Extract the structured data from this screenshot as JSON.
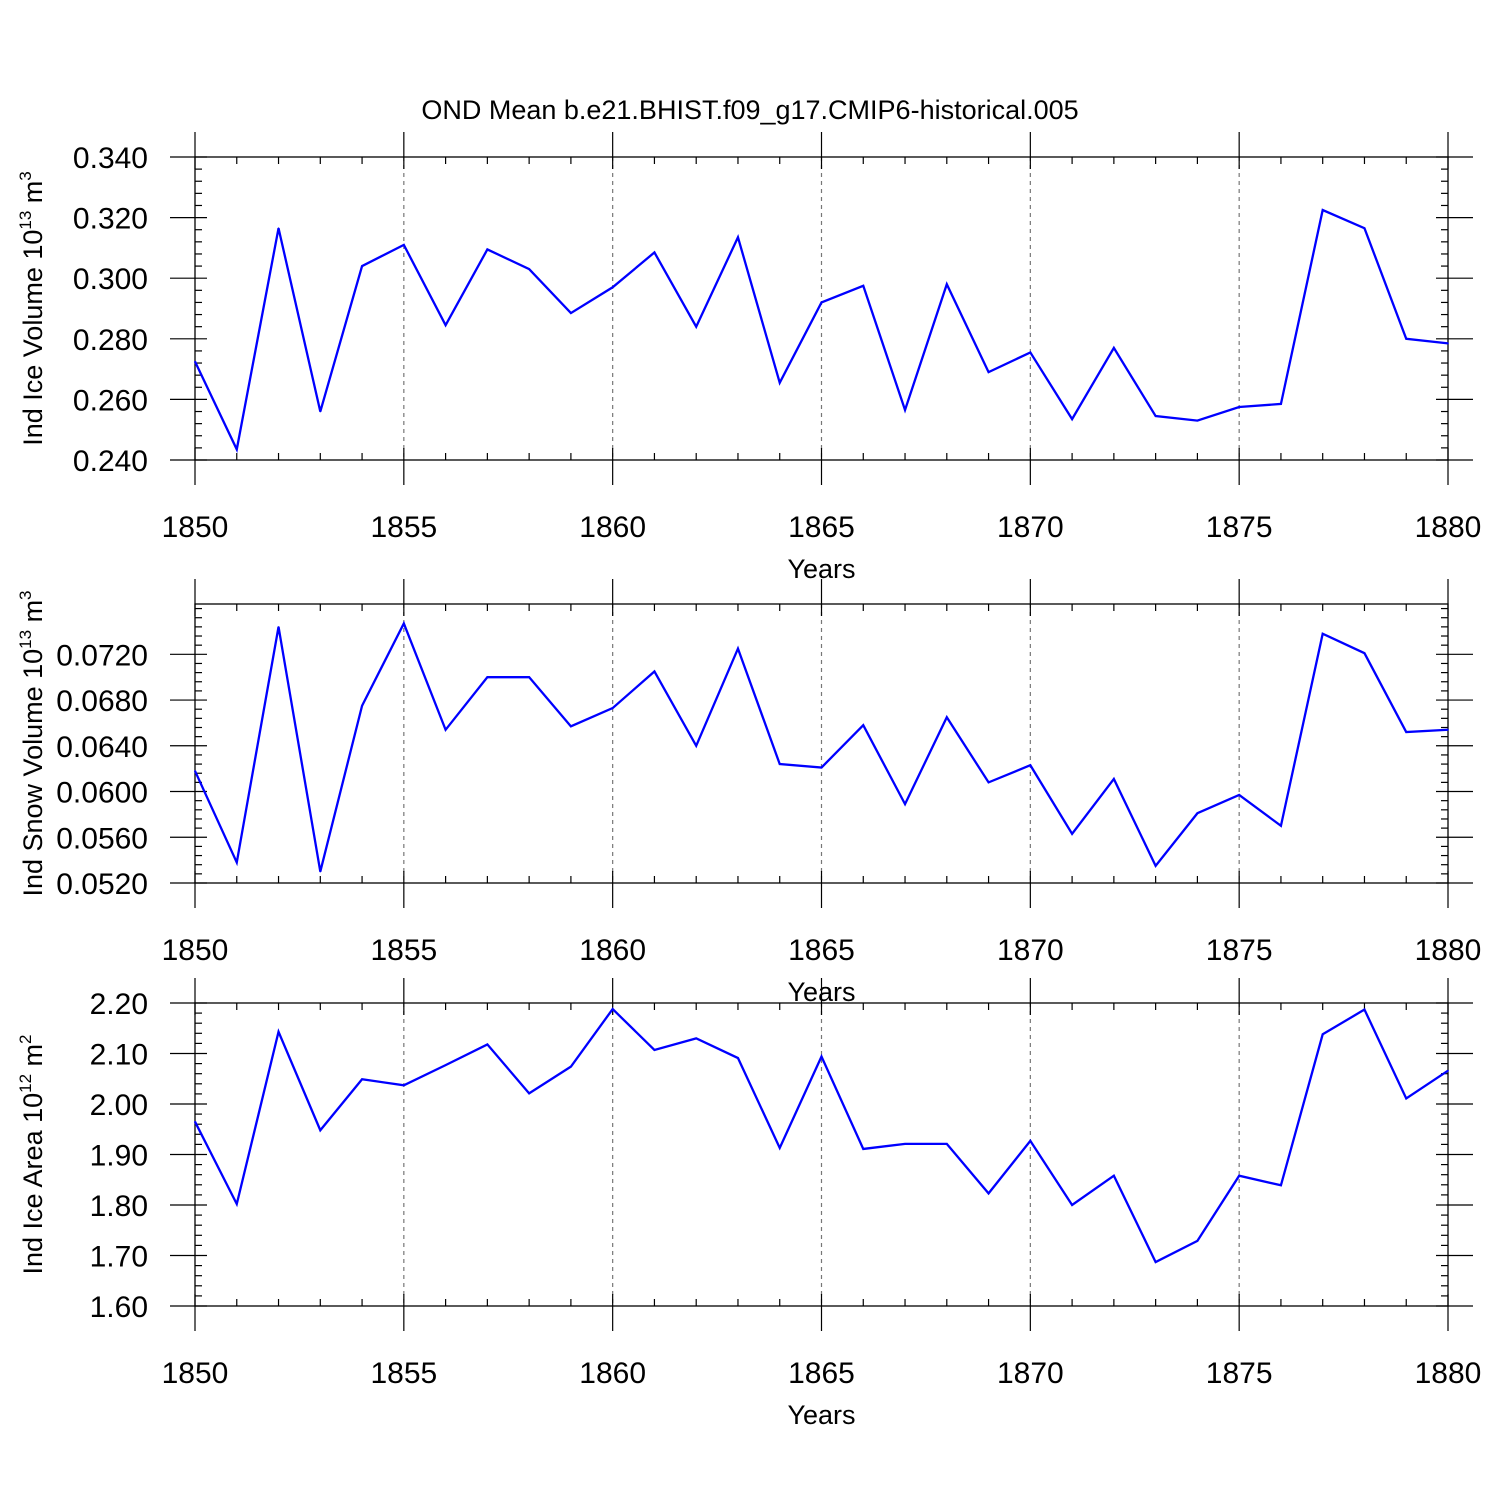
{
  "title": "OND Mean b.e21.BHIST.f09_g17.CMIP6-historical.005",
  "series_color": "#0000ff",
  "chart_data": [
    {
      "type": "line",
      "title": "OND Mean b.e21.BHIST.f09_g17.CMIP6-historical.005",
      "ylabel_main": "Ind Ice Volume 10",
      "ylabel_exp": "13",
      "ylabel_unit": " m",
      "ylabel_unit_exp": "3",
      "xlabel": "Years",
      "xlim": [
        1850,
        1880
      ],
      "ylim": [
        0.24,
        0.34
      ],
      "yticks": [
        0.24,
        0.26,
        0.28,
        0.3,
        0.32,
        0.34
      ],
      "ytick_labels": [
        "0.240",
        "0.260",
        "0.280",
        "0.300",
        "0.320",
        "0.340"
      ],
      "yminor_step": 0.004,
      "xticks": [
        1850,
        1855,
        1860,
        1865,
        1870,
        1875,
        1880
      ],
      "xtick_labels": [
        "1850",
        "1855",
        "1860",
        "1865",
        "1870",
        "1875",
        "1880"
      ],
      "x": [
        1850,
        1851,
        1852,
        1853,
        1854,
        1855,
        1856,
        1857,
        1858,
        1859,
        1860,
        1861,
        1862,
        1863,
        1864,
        1865,
        1866,
        1867,
        1868,
        1869,
        1870,
        1871,
        1872,
        1873,
        1874,
        1875,
        1876,
        1877,
        1878,
        1879,
        1880
      ],
      "values": [
        0.2725,
        0.2435,
        0.3165,
        0.256,
        0.304,
        0.311,
        0.2845,
        0.3095,
        0.303,
        0.2885,
        0.297,
        0.3085,
        0.284,
        0.3135,
        0.2655,
        0.292,
        0.2975,
        0.2565,
        0.298,
        0.269,
        0.2755,
        0.2535,
        0.277,
        0.2545,
        0.253,
        0.2575,
        0.2585,
        0.3225,
        0.3165,
        0.28,
        0.2785
      ]
    },
    {
      "type": "line",
      "ylabel_main": "Ind Snow Volume 10",
      "ylabel_exp": "13",
      "ylabel_unit": " m",
      "ylabel_unit_exp": "3",
      "xlabel": "Years",
      "xlim": [
        1850,
        1880
      ],
      "ylim": [
        0.052,
        0.0764
      ],
      "yticks": [
        0.052,
        0.056,
        0.06,
        0.064,
        0.068,
        0.072
      ],
      "ytick_labels": [
        "0.0520",
        "0.0560",
        "0.0600",
        "0.0640",
        "0.0680",
        "0.0720"
      ],
      "yminor_step": 0.0008,
      "xticks": [
        1850,
        1855,
        1860,
        1865,
        1870,
        1875,
        1880
      ],
      "xtick_labels": [
        "1850",
        "1855",
        "1860",
        "1865",
        "1870",
        "1875",
        "1880"
      ],
      "x": [
        1850,
        1851,
        1852,
        1853,
        1854,
        1855,
        1856,
        1857,
        1858,
        1859,
        1860,
        1861,
        1862,
        1863,
        1864,
        1865,
        1866,
        1867,
        1868,
        1869,
        1870,
        1871,
        1872,
        1873,
        1874,
        1875,
        1876,
        1877,
        1878,
        1879,
        1880
      ],
      "values": [
        0.0618,
        0.0538,
        0.0744,
        0.053,
        0.0675,
        0.0747,
        0.0654,
        0.07,
        0.07,
        0.0657,
        0.0673,
        0.0705,
        0.064,
        0.0725,
        0.0624,
        0.0621,
        0.0658,
        0.0589,
        0.0665,
        0.0608,
        0.0623,
        0.0563,
        0.0611,
        0.0535,
        0.0581,
        0.0597,
        0.057,
        0.0738,
        0.0721,
        0.0652,
        0.0654
      ]
    },
    {
      "type": "line",
      "ylabel_main": "Ind Ice Area 10",
      "ylabel_exp": "12",
      "ylabel_unit": " m",
      "ylabel_unit_exp": "2",
      "xlabel": "Years",
      "xlim": [
        1850,
        1880
      ],
      "ylim": [
        1.6,
        2.2
      ],
      "yticks": [
        1.6,
        1.7,
        1.8,
        1.9,
        2.0,
        2.1,
        2.2
      ],
      "ytick_labels": [
        "1.60",
        "1.70",
        "1.80",
        "1.90",
        "2.00",
        "2.10",
        "2.20"
      ],
      "yminor_step": 0.02,
      "xticks": [
        1850,
        1855,
        1860,
        1865,
        1870,
        1875,
        1880
      ],
      "xtick_labels": [
        "1850",
        "1855",
        "1860",
        "1865",
        "1870",
        "1875",
        "1880"
      ],
      "x": [
        1850,
        1851,
        1852,
        1853,
        1854,
        1855,
        1856,
        1857,
        1858,
        1859,
        1860,
        1861,
        1862,
        1863,
        1864,
        1865,
        1866,
        1867,
        1868,
        1869,
        1870,
        1871,
        1872,
        1873,
        1874,
        1875,
        1876,
        1877,
        1878,
        1879,
        1880
      ],
      "values": [
        1.965,
        1.802,
        2.143,
        1.948,
        2.049,
        2.037,
        2.077,
        2.118,
        2.021,
        2.074,
        2.188,
        2.107,
        2.13,
        2.091,
        1.913,
        2.094,
        1.911,
        1.921,
        1.921,
        1.823,
        1.927,
        1.8,
        1.858,
        1.687,
        1.729,
        1.858,
        1.839,
        2.138,
        2.187,
        2.011,
        2.066
      ]
    }
  ]
}
